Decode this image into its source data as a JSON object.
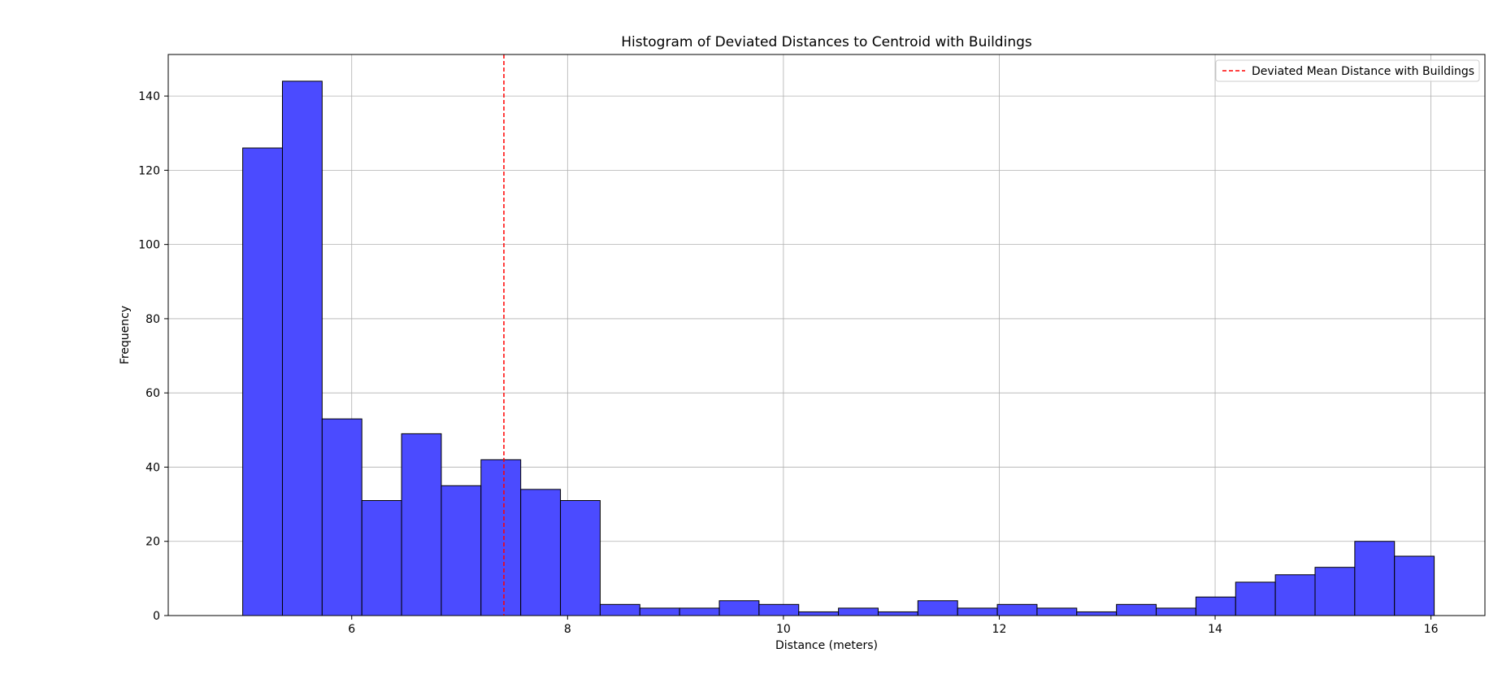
{
  "chart_data": {
    "type": "bar",
    "title": "Histogram of Deviated Distances to Centroid with Buildings",
    "xlabel": "Distance (meters)",
    "ylabel": "Frequency",
    "xlim": [
      4.3,
      16.5
    ],
    "ylim": [
      0,
      151.2
    ],
    "xticks": [
      6,
      8,
      10,
      12,
      14,
      16
    ],
    "yticks": [
      0,
      20,
      40,
      60,
      80,
      100,
      120,
      140
    ],
    "grid": true,
    "legend_position": "top-right",
    "bin_start": 4.99,
    "bin_width": 0.368,
    "values": [
      126,
      144,
      53,
      31,
      49,
      35,
      42,
      34,
      31,
      3,
      2,
      2,
      4,
      3,
      1,
      2,
      1,
      4,
      2,
      3,
      2,
      1,
      3,
      2,
      5,
      9,
      11,
      13,
      20,
      16
    ],
    "bar_color": "#4b4bff",
    "bar_edge_color": "#000000",
    "mean_line": {
      "x": 7.41,
      "color": "#ff0000",
      "label": "Deviated Mean Distance with Buildings"
    }
  }
}
